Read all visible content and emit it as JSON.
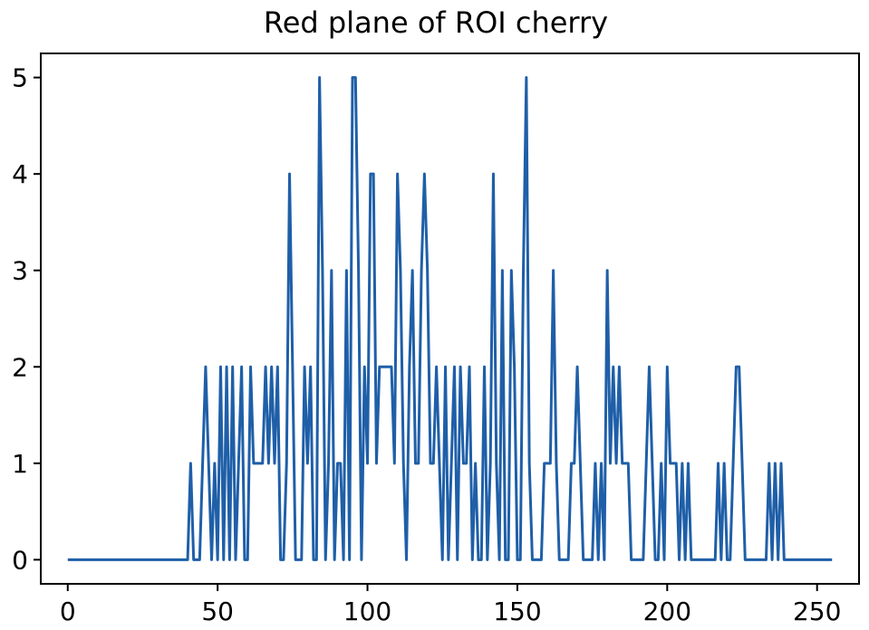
{
  "chart_data": {
    "type": "line",
    "title": "Red plane of ROI cherry",
    "xlabel": "",
    "ylabel": "",
    "xlim": [
      -9,
      264
    ],
    "ylim": [
      -0.25,
      5.25
    ],
    "x_ticks": [
      0,
      50,
      100,
      150,
      200,
      250
    ],
    "y_ticks": [
      0,
      1,
      2,
      3,
      4,
      5
    ],
    "grid": false,
    "legend": "none",
    "line_color": "#1f5fa8",
    "series": [
      {
        "points": [
          [
            0,
            0
          ],
          [
            40,
            0
          ],
          [
            41,
            1
          ],
          [
            42,
            0
          ],
          [
            44,
            0
          ],
          [
            45,
            1
          ],
          [
            46,
            2
          ],
          [
            47,
            1
          ],
          [
            48,
            0
          ],
          [
            49,
            1
          ],
          [
            50,
            0
          ],
          [
            51,
            2
          ],
          [
            52,
            0
          ],
          [
            53,
            2
          ],
          [
            54,
            0
          ],
          [
            55,
            2
          ],
          [
            56,
            0
          ],
          [
            57,
            1
          ],
          [
            58,
            2
          ],
          [
            59,
            0
          ],
          [
            60,
            0
          ],
          [
            61,
            2
          ],
          [
            62,
            1
          ],
          [
            63,
            1
          ],
          [
            64,
            1
          ],
          [
            65,
            1
          ],
          [
            66,
            2
          ],
          [
            67,
            1
          ],
          [
            68,
            2
          ],
          [
            69,
            1
          ],
          [
            70,
            2
          ],
          [
            71,
            0
          ],
          [
            72,
            0
          ],
          [
            73,
            1
          ],
          [
            74,
            4
          ],
          [
            75,
            2
          ],
          [
            76,
            0
          ],
          [
            77,
            0
          ],
          [
            78,
            0
          ],
          [
            79,
            2
          ],
          [
            80,
            1
          ],
          [
            81,
            2
          ],
          [
            82,
            0
          ],
          [
            83,
            0
          ],
          [
            84,
            5
          ],
          [
            85,
            3
          ],
          [
            86,
            0
          ],
          [
            87,
            1
          ],
          [
            88,
            3
          ],
          [
            89,
            0
          ],
          [
            90,
            1
          ],
          [
            91,
            1
          ],
          [
            92,
            0
          ],
          [
            93,
            3
          ],
          [
            94,
            0
          ],
          [
            95,
            5
          ],
          [
            96,
            5
          ],
          [
            97,
            3
          ],
          [
            98,
            0
          ],
          [
            99,
            2
          ],
          [
            100,
            1
          ],
          [
            101,
            4
          ],
          [
            102,
            4
          ],
          [
            103,
            1
          ],
          [
            104,
            2
          ],
          [
            105,
            2
          ],
          [
            106,
            2
          ],
          [
            107,
            2
          ],
          [
            108,
            2
          ],
          [
            109,
            1
          ],
          [
            110,
            4
          ],
          [
            111,
            3
          ],
          [
            112,
            1
          ],
          [
            113,
            0
          ],
          [
            114,
            2
          ],
          [
            115,
            3
          ],
          [
            116,
            1
          ],
          [
            117,
            1
          ],
          [
            118,
            3
          ],
          [
            119,
            4
          ],
          [
            120,
            3
          ],
          [
            121,
            1
          ],
          [
            122,
            1
          ],
          [
            123,
            2
          ],
          [
            124,
            1
          ],
          [
            125,
            0
          ],
          [
            126,
            2
          ],
          [
            127,
            0
          ],
          [
            128,
            1
          ],
          [
            129,
            2
          ],
          [
            130,
            0
          ],
          [
            131,
            2
          ],
          [
            132,
            1
          ],
          [
            133,
            1
          ],
          [
            134,
            2
          ],
          [
            135,
            0
          ],
          [
            136,
            1
          ],
          [
            137,
            0
          ],
          [
            138,
            0
          ],
          [
            139,
            2
          ],
          [
            140,
            0
          ],
          [
            141,
            1
          ],
          [
            142,
            4
          ],
          [
            143,
            1
          ],
          [
            144,
            0
          ],
          [
            145,
            3
          ],
          [
            146,
            0
          ],
          [
            147,
            0
          ],
          [
            148,
            3
          ],
          [
            149,
            2
          ],
          [
            150,
            0
          ],
          [
            151,
            0
          ],
          [
            152,
            3
          ],
          [
            153,
            5
          ],
          [
            154,
            1
          ],
          [
            155,
            0
          ],
          [
            156,
            0
          ],
          [
            157,
            0
          ],
          [
            158,
            0
          ],
          [
            159,
            1
          ],
          [
            160,
            1
          ],
          [
            161,
            1
          ],
          [
            162,
            3
          ],
          [
            163,
            1
          ],
          [
            164,
            0
          ],
          [
            165,
            0
          ],
          [
            166,
            0
          ],
          [
            167,
            0
          ],
          [
            168,
            1
          ],
          [
            169,
            1
          ],
          [
            170,
            2
          ],
          [
            171,
            1
          ],
          [
            172,
            0
          ],
          [
            173,
            0
          ],
          [
            174,
            0
          ],
          [
            175,
            0
          ],
          [
            176,
            1
          ],
          [
            177,
            0
          ],
          [
            178,
            1
          ],
          [
            179,
            0
          ],
          [
            180,
            3
          ],
          [
            181,
            1
          ],
          [
            182,
            2
          ],
          [
            183,
            1
          ],
          [
            184,
            2
          ],
          [
            185,
            1
          ],
          [
            186,
            1
          ],
          [
            187,
            1
          ],
          [
            188,
            0
          ],
          [
            189,
            0
          ],
          [
            190,
            0
          ],
          [
            191,
            0
          ],
          [
            192,
            0
          ],
          [
            193,
            1
          ],
          [
            194,
            2
          ],
          [
            195,
            1
          ],
          [
            196,
            0
          ],
          [
            197,
            0
          ],
          [
            198,
            1
          ],
          [
            199,
            0
          ],
          [
            200,
            2
          ],
          [
            201,
            1
          ],
          [
            202,
            1
          ],
          [
            203,
            1
          ],
          [
            204,
            0
          ],
          [
            205,
            1
          ],
          [
            206,
            0
          ],
          [
            207,
            1
          ],
          [
            208,
            0
          ],
          [
            209,
            0
          ],
          [
            210,
            0
          ],
          [
            211,
            0
          ],
          [
            212,
            0
          ],
          [
            213,
            0
          ],
          [
            214,
            0
          ],
          [
            215,
            0
          ],
          [
            216,
            0
          ],
          [
            217,
            1
          ],
          [
            218,
            0
          ],
          [
            219,
            1
          ],
          [
            220,
            0
          ],
          [
            221,
            0
          ],
          [
            222,
            1
          ],
          [
            223,
            2
          ],
          [
            224,
            2
          ],
          [
            225,
            1
          ],
          [
            226,
            0
          ],
          [
            227,
            0
          ],
          [
            228,
            0
          ],
          [
            229,
            0
          ],
          [
            230,
            0
          ],
          [
            231,
            0
          ],
          [
            232,
            0
          ],
          [
            233,
            0
          ],
          [
            234,
            1
          ],
          [
            235,
            0
          ],
          [
            236,
            1
          ],
          [
            237,
            0
          ],
          [
            238,
            1
          ],
          [
            239,
            0
          ],
          [
            240,
            0
          ],
          [
            255,
            0
          ]
        ]
      }
    ]
  }
}
